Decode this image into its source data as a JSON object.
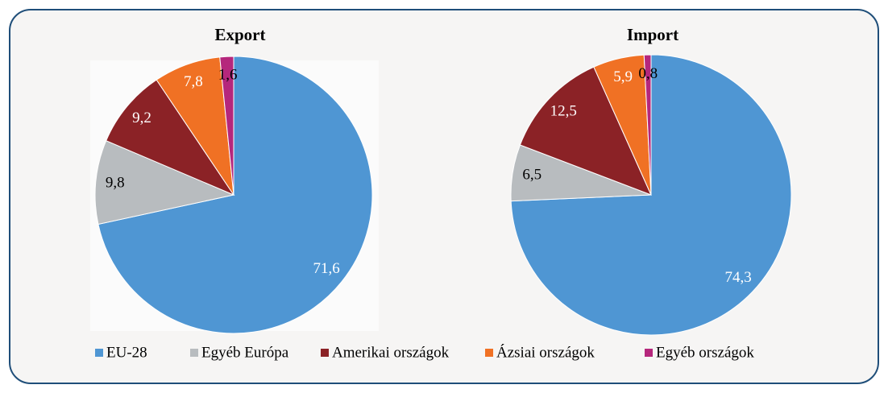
{
  "chart_data": [
    {
      "type": "pie",
      "title": "Export",
      "categories": [
        "EU-28",
        "Egyéb Európa",
        "Amerikai országok",
        "Ázsiai országok",
        "Egyéb országok"
      ],
      "values": [
        71.6,
        9.8,
        9.2,
        7.8,
        1.6
      ],
      "value_labels": [
        "71,6",
        "9,8",
        "9,2",
        "7,8",
        "1,6"
      ],
      "colors": [
        "#4f96d3",
        "#b8bcbf",
        "#8b2226",
        "#f07124",
        "#b5277c"
      ]
    },
    {
      "type": "pie",
      "title": "Import",
      "categories": [
        "EU-28",
        "Egyéb Európa",
        "Amerikai országok",
        "Ázsiai országok",
        "Egyéb országok"
      ],
      "values": [
        74.3,
        6.5,
        12.5,
        5.9,
        0.8
      ],
      "value_labels": [
        "74,3",
        "6,5",
        "12,5",
        "5,9",
        "0,8"
      ],
      "colors": [
        "#4f96d3",
        "#b8bcbf",
        "#8b2226",
        "#f07124",
        "#b5277c"
      ]
    }
  ]
}
